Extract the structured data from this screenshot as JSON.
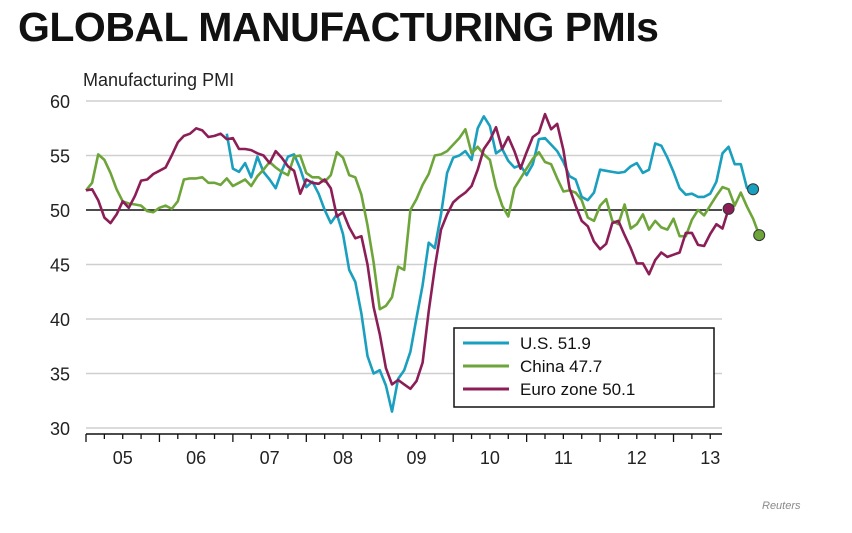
{
  "title": "GLOBAL MANUFACTURING PMIs",
  "credit": "Reuters",
  "chart_data": {
    "type": "line",
    "title": "GLOBAL MANUFACTURING PMIs",
    "ylabel": "Manufacturing PMI",
    "xlabel": "",
    "ylim": [
      30,
      60
    ],
    "yticks": [
      60,
      55,
      50,
      45,
      40,
      35,
      30
    ],
    "xticks": [
      "05",
      "06",
      "07",
      "08",
      "09",
      "10",
      "11",
      "12",
      "13"
    ],
    "x_start": "2005-01",
    "x_end_months": 104,
    "reference_line": 50,
    "grid": true,
    "legend_position": "bottom-right",
    "series": [
      {
        "name": "U.S.",
        "label": "U.S. 51.9",
        "color": "#1a9fbf",
        "start_index": 23,
        "values": [
          57.0,
          53.8,
          53.5,
          54.3,
          53.0,
          54.9,
          53.5,
          52.8,
          52.0,
          53.6,
          54.9,
          55.1,
          53.8,
          52.1,
          52.6,
          51.5,
          50.0,
          48.8,
          49.6,
          47.8,
          44.5,
          43.4,
          40.5,
          36.6,
          35.0,
          35.3,
          33.9,
          31.5,
          34.5,
          35.3,
          37.0,
          40.1,
          43.1,
          47.0,
          46.5,
          49.6,
          53.4,
          54.8,
          55.0,
          55.4,
          54.6,
          57.5,
          58.6,
          57.7,
          55.2,
          55.6,
          54.5,
          53.9,
          54.1,
          53.2,
          54.2,
          56.5,
          56.6,
          56.0,
          55.4,
          54.4,
          53.1,
          52.8,
          51.2,
          50.9,
          51.6,
          53.7,
          53.6,
          53.5,
          53.4,
          53.5,
          54.0,
          54.3,
          53.4,
          53.7,
          56.1,
          55.9,
          54.8,
          53.5,
          52.0,
          51.4,
          51.5,
          51.2,
          51.2,
          51.5,
          52.6,
          55.2,
          55.8,
          54.2,
          54.2,
          52.0,
          51.9
        ]
      },
      {
        "name": "China",
        "label": "China 47.7",
        "color": "#6ea53a",
        "start_index": 0,
        "values": [
          51.8,
          52.5,
          55.1,
          54.6,
          53.4,
          51.9,
          50.8,
          50.6,
          50.5,
          50.4,
          49.9,
          49.8,
          50.2,
          50.4,
          50.1,
          50.8,
          52.8,
          52.9,
          52.9,
          53.0,
          52.5,
          52.5,
          52.3,
          52.9,
          52.2,
          52.5,
          52.8,
          52.2,
          53.1,
          53.7,
          54.4,
          53.9,
          53.5,
          53.2,
          54.9,
          55.0,
          53.4,
          53.0,
          53.0,
          52.6,
          53.2,
          55.3,
          54.8,
          53.2,
          53.0,
          51.4,
          48.6,
          45.2,
          40.9,
          41.2,
          42.0,
          44.8,
          44.5,
          50.0,
          51.0,
          52.3,
          53.3,
          55.0,
          55.1,
          55.4,
          56.0,
          56.6,
          57.4,
          55.2,
          55.8,
          55.1,
          54.6,
          52.1,
          50.4,
          49.4,
          52.0,
          52.9,
          53.8,
          54.7,
          55.3,
          54.4,
          54.2,
          52.9,
          51.7,
          51.8,
          51.6,
          50.9,
          49.3,
          49.0,
          50.4,
          51.0,
          49.0,
          48.7,
          50.5,
          48.3,
          48.7,
          49.6,
          48.2,
          49.0,
          48.4,
          48.2,
          49.2,
          47.6,
          47.6,
          49.1,
          50.0,
          49.5,
          50.4,
          51.3,
          52.1,
          51.9,
          50.4,
          51.6,
          50.3,
          49.2,
          47.7
        ]
      },
      {
        "name": "Euro zone",
        "label": "Euro zone 50.1",
        "color": "#8c1e57",
        "start_index": 0,
        "values": [
          51.8,
          51.9,
          50.9,
          49.3,
          48.8,
          49.6,
          50.8,
          50.2,
          51.3,
          52.7,
          52.8,
          53.3,
          53.6,
          53.9,
          55.0,
          56.2,
          56.8,
          57.0,
          57.5,
          57.3,
          56.7,
          56.8,
          57.0,
          56.5,
          56.6,
          55.6,
          55.6,
          55.5,
          55.2,
          55.0,
          54.3,
          55.4,
          54.8,
          54.0,
          53.6,
          51.5,
          52.8,
          52.5,
          52.4,
          52.8,
          52.0,
          49.4,
          49.8,
          48.4,
          47.4,
          47.6,
          45.0,
          41.1,
          38.6,
          35.5,
          34.0,
          34.4,
          34.0,
          33.6,
          34.3,
          36.0,
          40.7,
          44.7,
          48.2,
          49.6,
          50.7,
          51.2,
          51.6,
          52.2,
          53.7,
          55.6,
          56.4,
          57.6,
          55.6,
          56.7,
          55.4,
          53.8,
          55.3,
          56.7,
          57.1,
          58.8,
          57.4,
          57.9,
          55.5,
          52.0,
          50.4,
          49.0,
          48.5,
          47.1,
          46.4,
          46.9,
          48.8,
          49.0,
          47.7,
          46.5,
          45.1,
          45.1,
          44.1,
          45.4,
          46.1,
          45.7,
          45.9,
          46.1,
          47.9,
          47.9,
          46.8,
          46.7,
          47.8,
          48.7,
          48.3,
          50.1
        ]
      }
    ],
    "annotations": []
  }
}
